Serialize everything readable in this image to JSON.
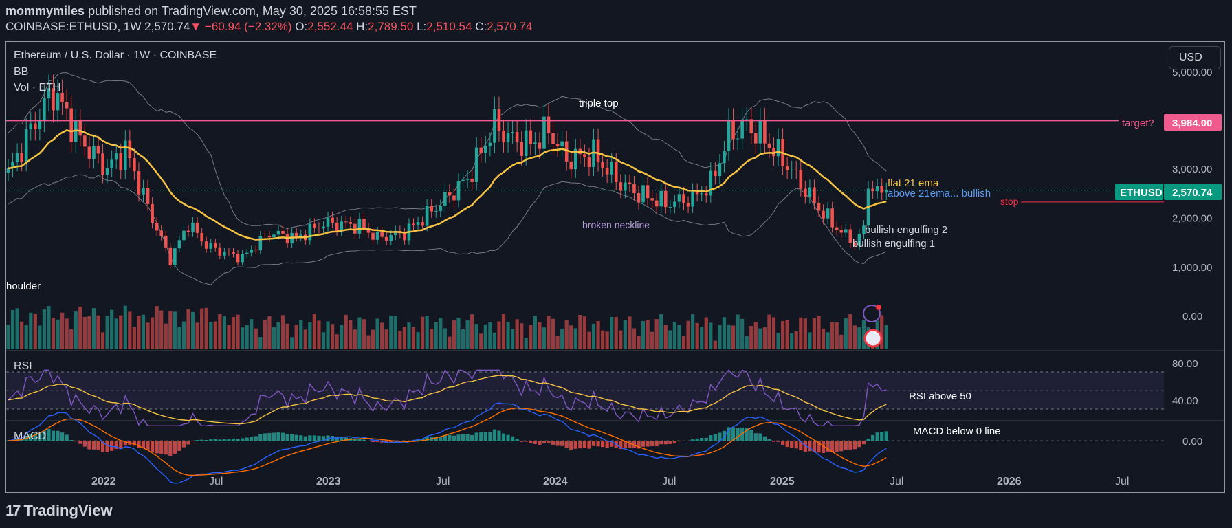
{
  "header": {
    "author": "mommymiles",
    "published": "published on TradingView.com, May 30, 2025 16:58:55 EST",
    "symbol": "COINBASE:ETHUSD, 1W",
    "price": "2,570.74",
    "change_arrow": "▼",
    "change": "−60.94 (−2.32%)",
    "o_label": "O:",
    "o_val": "2,552.44",
    "h_label": "H:",
    "h_val": "2,789.50",
    "l_label": "L:",
    "l_val": "2,510.54",
    "c_label": "C:",
    "c_val": "2,570.74"
  },
  "legend": {
    "title": "Ethereum / U.S. Dollar · 1W · COINBASE",
    "bb": "BB",
    "vol": "Vol · ETH",
    "rsi": "RSI",
    "macd": "MACD"
  },
  "currency_button": "USD",
  "colors": {
    "bull": "#26a69a",
    "bear": "#ef5350",
    "ema": "#f5c242",
    "bb": "#787b86",
    "target": "#f15a8c",
    "stop": "#f23645",
    "rsi": "#7e57c2",
    "macd": "#2962ff",
    "signal": "#ff6d00",
    "background": "#131722"
  },
  "chart_data": {
    "type": "candlestick",
    "symbol": "ETHUSD",
    "timeframe": "1W",
    "y_ticks": [
      "1,000.00",
      "2,000.00",
      "3,000.00"
    ],
    "y_range": [
      -400,
      5200
    ],
    "x_ticks": [
      "2022",
      "Jul",
      "2023",
      "Jul",
      "2024",
      "Jul",
      "2025",
      "Jul",
      "2026",
      "Jul"
    ],
    "rsi_ticks": [
      "40.00",
      "80.00"
    ],
    "macd_ticks": [
      "0.00"
    ],
    "price_path": [
      [
        0,
        2900
      ],
      [
        5,
        3800
      ],
      [
        10,
        4600
      ],
      [
        16,
        3600
      ],
      [
        22,
        3000
      ],
      [
        26,
        3400
      ],
      [
        32,
        2000
      ],
      [
        36,
        1150
      ],
      [
        40,
        1900
      ],
      [
        44,
        1450
      ],
      [
        48,
        1300
      ],
      [
        52,
        1200
      ],
      [
        58,
        1700
      ],
      [
        64,
        1600
      ],
      [
        70,
        1900
      ],
      [
        78,
        1850
      ],
      [
        82,
        1600
      ],
      [
        88,
        1700
      ],
      [
        96,
        2300
      ],
      [
        102,
        2800
      ],
      [
        108,
        3900
      ],
      [
        112,
        3600
      ],
      [
        116,
        3500
      ],
      [
        120,
        3800
      ],
      [
        124,
        3200
      ],
      [
        130,
        3300
      ],
      [
        136,
        2700
      ],
      [
        140,
        2500
      ],
      [
        146,
        2300
      ],
      [
        152,
        2400
      ],
      [
        156,
        2700
      ],
      [
        160,
        3700
      ],
      [
        164,
        3900
      ],
      [
        168,
        3600
      ],
      [
        172,
        3200
      ],
      [
        176,
        2700
      ],
      [
        180,
        2200
      ],
      [
        184,
        1800
      ],
      [
        188,
        1500
      ],
      [
        189,
        1600
      ],
      [
        190,
        1850
      ],
      [
        191,
        2600
      ],
      [
        192,
        2550
      ],
      [
        193,
        2650
      ],
      [
        194,
        2520
      ],
      [
        195,
        2570
      ]
    ],
    "last_price": "2,570.74",
    "levels": [
      {
        "label": "target?",
        "price": 3984,
        "value_label": "3,984.00"
      },
      {
        "label": "stop",
        "price": 2330
      }
    ],
    "annotations": [
      "triple top",
      "broken neckline",
      "flat 21 ema",
      "above 21ema... bullish",
      "bullish engulfing 2",
      "bullish engulfing 1",
      "houlder",
      "RSI above 50",
      "MACD below 0 line"
    ]
  },
  "footer": {
    "brand": "TradingView",
    "logo": "17"
  }
}
